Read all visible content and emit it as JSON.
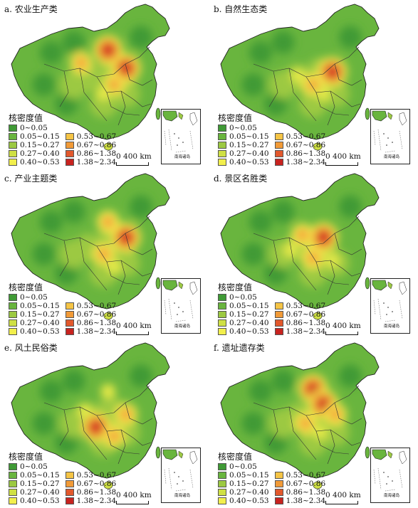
{
  "legend": {
    "title": "核密度值",
    "classes": [
      {
        "label": "0~0.05",
        "color": "#3f9a35"
      },
      {
        "label": "0.05~0.15",
        "color": "#69b53e"
      },
      {
        "label": "0.15~0.27",
        "color": "#9cc942"
      },
      {
        "label": "0.27~0.40",
        "color": "#cfe044"
      },
      {
        "label": "0.40~0.53",
        "color": "#f2ef4c"
      },
      {
        "label": "0.53~0.67",
        "color": "#f5c445"
      },
      {
        "label": "0.67~0.86",
        "color": "#f19a37"
      },
      {
        "label": "0.86~1.38",
        "color": "#e2582c"
      },
      {
        "label": "1.38~2.34",
        "color": "#c8231f"
      }
    ]
  },
  "scale_label": "0  400 km",
  "inset_label": "南海诸岛",
  "panels": [
    {
      "title": "a. 农业生产类",
      "hotspots": [
        [
          0.58,
          0.28,
          "high"
        ],
        [
          0.7,
          0.42,
          "high"
        ],
        [
          0.4,
          0.38,
          "mid"
        ],
        [
          0.62,
          0.55,
          "mid"
        ],
        [
          0.55,
          0.62,
          "low"
        ]
      ]
    },
    {
      "title": "b. 自然生态类",
      "hotspots": [
        [
          0.68,
          0.45,
          "high"
        ],
        [
          0.55,
          0.55,
          "mid"
        ],
        [
          0.45,
          0.48,
          "low"
        ],
        [
          0.62,
          0.62,
          "low"
        ]
      ]
    },
    {
      "title": "c. 产业主题类",
      "hotspots": [
        [
          0.7,
          0.42,
          "high"
        ],
        [
          0.58,
          0.3,
          "mid"
        ],
        [
          0.55,
          0.55,
          "mid"
        ],
        [
          0.62,
          0.65,
          "low"
        ]
      ]
    },
    {
      "title": "d. 景区名胜类",
      "hotspots": [
        [
          0.62,
          0.42,
          "high"
        ],
        [
          0.48,
          0.4,
          "mid"
        ],
        [
          0.55,
          0.58,
          "mid"
        ],
        [
          0.4,
          0.52,
          "low"
        ],
        [
          0.68,
          0.6,
          "low"
        ]
      ]
    },
    {
      "title": "e. 风土民俗类",
      "hotspots": [
        [
          0.5,
          0.58,
          "high"
        ],
        [
          0.7,
          0.48,
          "mid"
        ],
        [
          0.62,
          0.65,
          "mid"
        ],
        [
          0.42,
          0.45,
          "low"
        ],
        [
          0.58,
          0.3,
          "low"
        ]
      ]
    },
    {
      "title": "f. 遗址遗存类",
      "hotspots": [
        [
          0.55,
          0.28,
          "high"
        ],
        [
          0.62,
          0.4,
          "high"
        ],
        [
          0.7,
          0.48,
          "mid"
        ],
        [
          0.5,
          0.55,
          "mid"
        ],
        [
          0.6,
          0.62,
          "low"
        ]
      ]
    }
  ]
}
